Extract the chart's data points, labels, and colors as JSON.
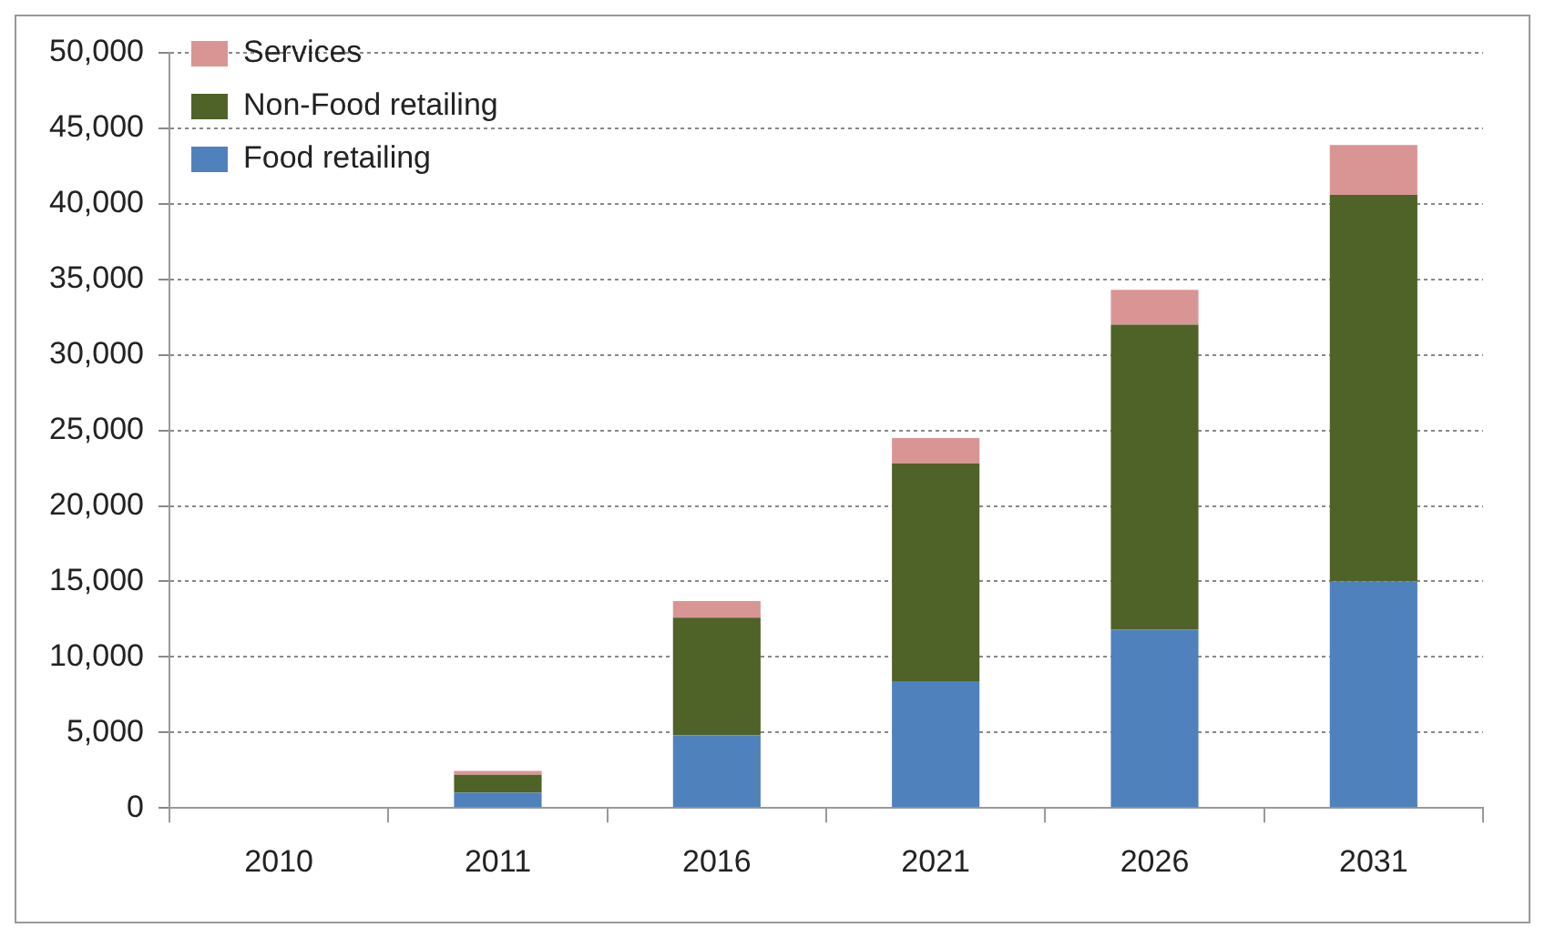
{
  "chart_data": {
    "type": "bar",
    "stacked": true,
    "categories": [
      "2010",
      "2011",
      "2016",
      "2021",
      "2026",
      "2031"
    ],
    "series": [
      {
        "name": "Food retailing",
        "color": "#4f81bd",
        "values": [
          0,
          1000,
          4800,
          8400,
          11800,
          15000
        ]
      },
      {
        "name": "Non-Food retailing",
        "color": "#4f6228",
        "values": [
          0,
          1200,
          7800,
          14400,
          20200,
          25600
        ]
      },
      {
        "name": "Services",
        "color": "#d99594",
        "values": [
          0,
          250,
          1100,
          1700,
          2300,
          3300
        ]
      }
    ],
    "ylim": [
      0,
      50000
    ],
    "yticks": [
      {
        "value": 0,
        "label": "0"
      },
      {
        "value": 5000,
        "label": "5,000"
      },
      {
        "value": 10000,
        "label": "10,000"
      },
      {
        "value": 15000,
        "label": "15,000"
      },
      {
        "value": 20000,
        "label": "20,000"
      },
      {
        "value": 25000,
        "label": "25,000"
      },
      {
        "value": 30000,
        "label": "30,000"
      },
      {
        "value": 35000,
        "label": "35,000"
      },
      {
        "value": 40000,
        "label": "40,000"
      },
      {
        "value": 45000,
        "label": "45,000"
      },
      {
        "value": 50000,
        "label": "50,000"
      }
    ],
    "grid": "y",
    "legend": "top left"
  }
}
